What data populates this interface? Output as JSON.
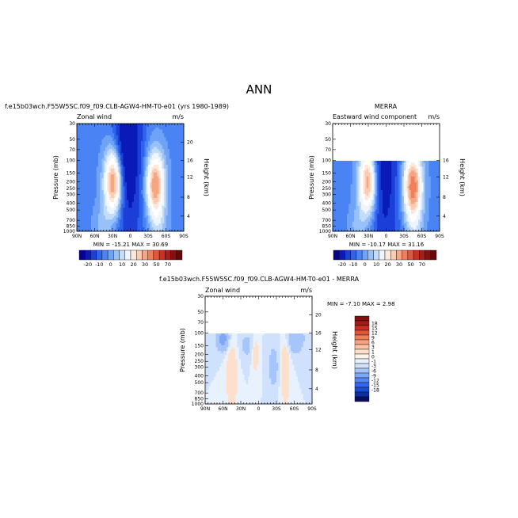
{
  "page": {
    "title": "ANN"
  },
  "colors": {
    "levels": [
      "#08008f",
      "#0a1ab8",
      "#1c3fd8",
      "#2e63ec",
      "#4a84f4",
      "#6fa3f7",
      "#98c1fa",
      "#c4dcfc",
      "#eef5fe",
      "#ffffff",
      "#fde9dc",
      "#fbcbb2",
      "#f7a684",
      "#f0805c",
      "#e2563b",
      "#c83124",
      "#a81c1a",
      "#861010",
      "#660808"
    ],
    "diff_levels": [
      "#0a1060",
      "#0f2fa0",
      "#1a4cd6",
      "#3267ee",
      "#5588f5",
      "#7da8f8",
      "#a6c5fa",
      "#cfe1fc",
      "#e8f1fe",
      "#fff4ec",
      "#fde0cc",
      "#fbc4a6",
      "#f7a280",
      "#f07e5a",
      "#df5538",
      "#c73024",
      "#a31a1a",
      "#800f0f"
    ]
  },
  "chart_data": [
    {
      "type": "heatmap",
      "title": "f.e15b03wch.F55W5SC.f09_f09.CLB-AGW4-HM-T0-e01 (yrs 1980-1989)",
      "left_label": "Zonal wind",
      "right_label": "m/s",
      "ylabel": "Pressure (mb)",
      "ylabel_right": "Height (km)",
      "xticks": [
        "90N",
        "60N",
        "30N",
        "0",
        "30S",
        "60S",
        "90S"
      ],
      "yticks": [
        "30",
        "50",
        "70",
        "100",
        "150",
        "200",
        "250",
        "300",
        "400",
        "500",
        "700",
        "850",
        "1000"
      ],
      "yticks_right": [
        "20",
        "16",
        "12",
        "8",
        "4"
      ],
      "top_pressure": 30,
      "stats": "MIN = -15.21   MAX =  30.69",
      "colorbar_labels": [
        "-20",
        "-10",
        "0",
        "10",
        "20",
        "30",
        "50",
        "70"
      ],
      "jets": [
        {
          "lat": 28,
          "p": 200,
          "value": 30.69
        },
        {
          "lat": -42,
          "p": 220,
          "value": 28
        },
        {
          "lat": 5,
          "p": 60,
          "value": -15.21
        }
      ]
    },
    {
      "type": "heatmap",
      "title": "MERRA",
      "left_label": "Eastward wind component",
      "right_label": "m/s",
      "ylabel": "Pressure (mb)",
      "ylabel_right": "Height (km)",
      "xticks": [
        "90N",
        "60N",
        "30N",
        "0",
        "30S",
        "60S",
        "90S"
      ],
      "yticks": [
        "30",
        "50",
        "70",
        "100",
        "150",
        "200",
        "250",
        "300",
        "400",
        "500",
        "700",
        "850",
        "1000"
      ],
      "yticks_right": [
        "16",
        "12",
        "8",
        "4"
      ],
      "top_pressure": 100,
      "stats": "MIN = -10.17   MAX =  31.16",
      "colorbar_labels": [
        "-20",
        "-10",
        "0",
        "10",
        "20",
        "30",
        "50",
        "70"
      ],
      "jets": [
        {
          "lat": 30,
          "p": 200,
          "value": 28
        },
        {
          "lat": -45,
          "p": 230,
          "value": 31.16
        },
        {
          "lat": 5,
          "p": 120,
          "value": -10.17
        }
      ]
    },
    {
      "type": "heatmap",
      "title": "f.e15b03wch.F55W5SC.f09_f09.CLB-AGW4-HM-T0-e01 - MERRA",
      "left_label": "Zonal wind",
      "right_label": "m/s",
      "ylabel": "Pressure (mb)",
      "ylabel_right": "Height (km)",
      "xticks": [
        "90N",
        "60N",
        "30N",
        "0",
        "30S",
        "60S",
        "90S"
      ],
      "yticks": [
        "30",
        "50",
        "70",
        "100",
        "150",
        "200",
        "250",
        "300",
        "400",
        "500",
        "700",
        "850",
        "1000"
      ],
      "yticks_right": [
        "20",
        "16",
        "12",
        "8",
        "4"
      ],
      "top_pressure": 100,
      "stats": "MIN =  -7.10   MAX =   2.98",
      "colorbar_labels": [
        "18",
        "15",
        "12",
        "9",
        "6",
        "3",
        "1",
        "0",
        "-1",
        "-3",
        "-6",
        "-9",
        "-12",
        "-15",
        "-18"
      ]
    }
  ]
}
